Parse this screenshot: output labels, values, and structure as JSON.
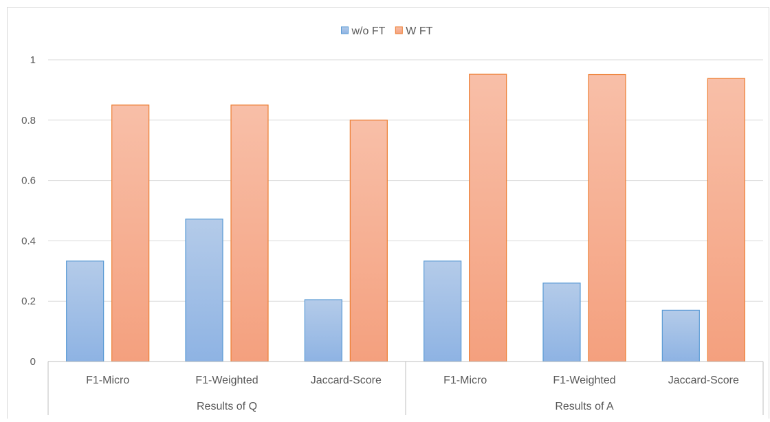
{
  "chart_data": {
    "type": "bar",
    "title": "",
    "xlabel": "",
    "ylabel": "",
    "ylim": [
      0,
      1
    ],
    "yticks": [
      0,
      0.2,
      0.4,
      0.6,
      0.8,
      1
    ],
    "ytick_labels": [
      "0",
      "0.2",
      "0.4",
      "0.6",
      "0.8",
      "1"
    ],
    "grid": true,
    "legend_position": "top",
    "groups": [
      {
        "label": "Results of Q",
        "categories": [
          "F1-Micro",
          "F1-Weighted",
          "Jaccard-Score"
        ]
      },
      {
        "label": "Results of A",
        "categories": [
          "F1-Micro",
          "F1-Weighted",
          "Jaccard-Score"
        ]
      }
    ],
    "categories": [
      "F1-Micro",
      "F1-Weighted",
      "Jaccard-Score",
      "F1-Micro",
      "F1-Weighted",
      "Jaccard-Score"
    ],
    "series": [
      {
        "name": "w/o FT",
        "values": [
          0.333,
          0.472,
          0.205,
          0.333,
          0.26,
          0.17
        ],
        "color_light": "#b4cbe9",
        "color_dark": "#8eb3e3",
        "stroke": "#5b9bd5"
      },
      {
        "name": "W FT",
        "values": [
          0.85,
          0.85,
          0.8,
          0.952,
          0.951,
          0.938
        ],
        "color_light": "#f8bfa8",
        "color_dark": "#f4a07e",
        "stroke": "#ed7d31"
      }
    ]
  }
}
